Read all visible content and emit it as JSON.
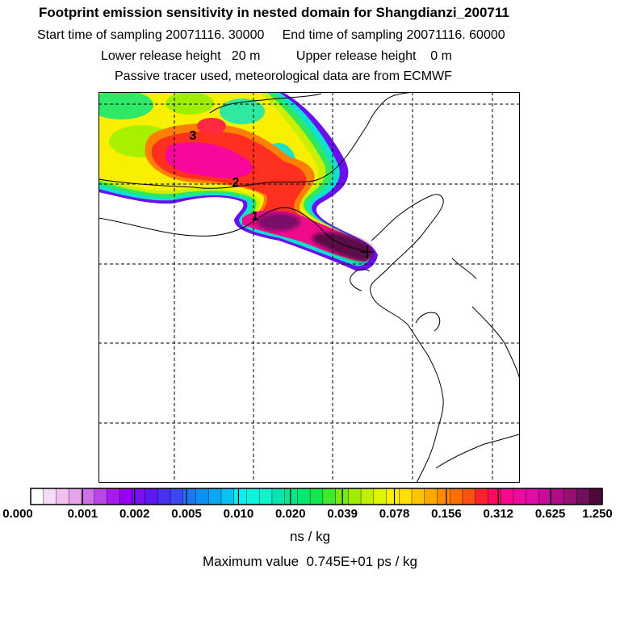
{
  "header": {
    "title": "Footprint emission sensitivity in nested domain for Shangdianzi_200711",
    "sampling_line": "Start time of sampling 20071116. 30000     End time of sampling 20071116. 60000",
    "release_line": "Lower release height   20 m          Upper release height    0 m",
    "info_line": "Passive tracer used, meteorological data are from ECMWF"
  },
  "map": {
    "site_marker": "plus-icon",
    "labels": [
      "3",
      "2",
      "1"
    ]
  },
  "colorbar": {
    "tick_labels": [
      "0.000",
      "0.001",
      "0.002",
      "0.005",
      "0.010",
      "0.020",
      "0.039",
      "0.078",
      "0.156",
      "0.312",
      "0.625",
      "1.250"
    ],
    "colors": [
      "#ffffff",
      "#f7dcf7",
      "#efc0f0",
      "#e8a3ef",
      "#d070ea",
      "#bb44ea",
      "#a81aee",
      "#9a00f6",
      "#7a10f2",
      "#6018f0",
      "#4a30ee",
      "#3a48f0",
      "#1a78f2",
      "#0c90f0",
      "#0aa8f2",
      "#08c2f0",
      "#06f0f0",
      "#08f6e0",
      "#10f2c8",
      "#06e4b0",
      "#08e88a",
      "#04e870",
      "#10e850",
      "#40e830",
      "#7ae810",
      "#a0ec00",
      "#c2f000",
      "#e0f400",
      "#fff000",
      "#ffe000",
      "#ffc400",
      "#ffa800",
      "#ff8c00",
      "#ff6e00",
      "#ff5010",
      "#ff2030",
      "#ff0a60",
      "#f8088c",
      "#ec0aa0",
      "#de0ca8",
      "#c80a9e",
      "#b00c8a",
      "#961070",
      "#70105a",
      "#50083c"
    ],
    "units": "ns / kg",
    "max_value_text": "Maximum value  0.745E+01 ps / kg"
  }
}
